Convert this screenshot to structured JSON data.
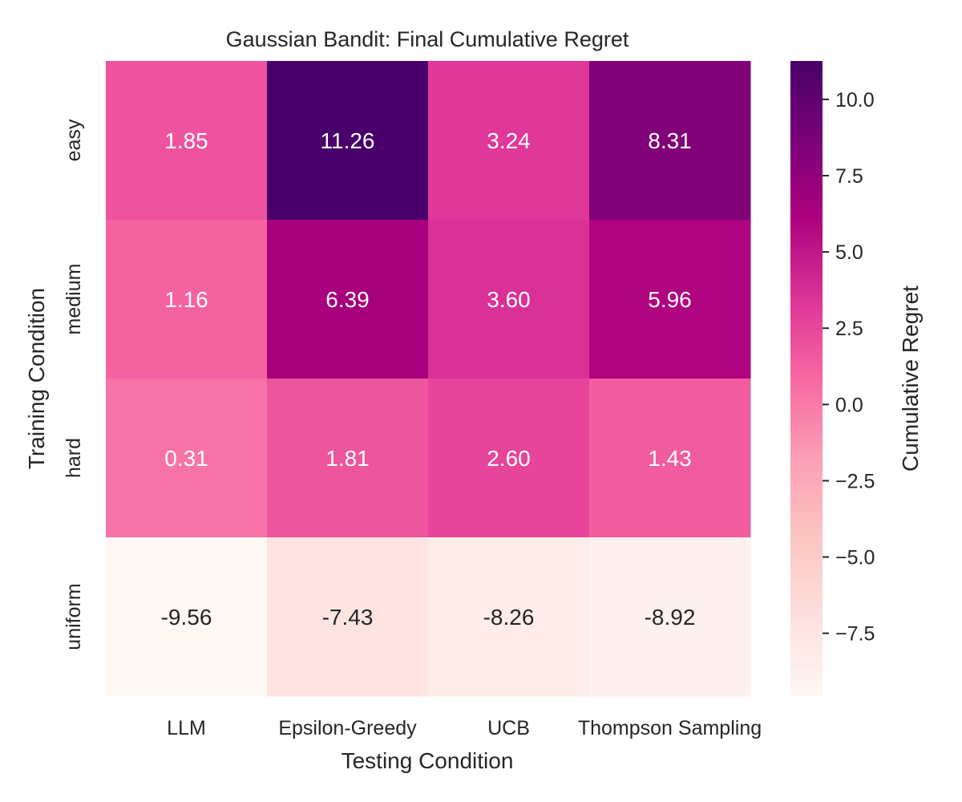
{
  "chart_data": {
    "type": "heatmap",
    "title": "Gaussian Bandit: Final Cumulative Regret",
    "xlabel": "Testing Condition",
    "ylabel": "Training Condition",
    "x_categories": [
      "LLM",
      "Epsilon-Greedy",
      "UCB",
      "Thompson Sampling"
    ],
    "y_categories": [
      "easy",
      "medium",
      "hard",
      "uniform"
    ],
    "values": [
      [
        1.85,
        11.26,
        3.24,
        8.31
      ],
      [
        1.16,
        6.39,
        3.6,
        5.96
      ],
      [
        0.31,
        1.81,
        2.6,
        1.43
      ],
      [
        -9.56,
        -7.43,
        -8.26,
        -8.92
      ]
    ],
    "value_labels": [
      [
        "1.85",
        "11.26",
        "3.24",
        "8.31"
      ],
      [
        "1.16",
        "6.39",
        "3.60",
        "5.96"
      ],
      [
        "0.31",
        "1.81",
        "2.60",
        "1.43"
      ],
      [
        "-9.56",
        "-7.43",
        "-8.26",
        "-8.92"
      ]
    ],
    "colorbar": {
      "label": "Cumulative Regret",
      "range": [
        -9.56,
        11.26
      ],
      "ticks": [
        10.0,
        7.5,
        5.0,
        2.5,
        0.0,
        -2.5,
        -5.0,
        -7.5
      ],
      "tick_labels": [
        "10.0",
        "7.5",
        "5.0",
        "2.5",
        "0.0",
        "−2.5",
        "−5.0",
        "−7.5"
      ],
      "colormap": "RdPu",
      "colormap_stops": [
        "#fff7f3",
        "#fde0dd",
        "#fcc5c0",
        "#fa9fb5",
        "#f768a1",
        "#dd3497",
        "#ae017e",
        "#7a0177",
        "#49006a"
      ]
    }
  }
}
